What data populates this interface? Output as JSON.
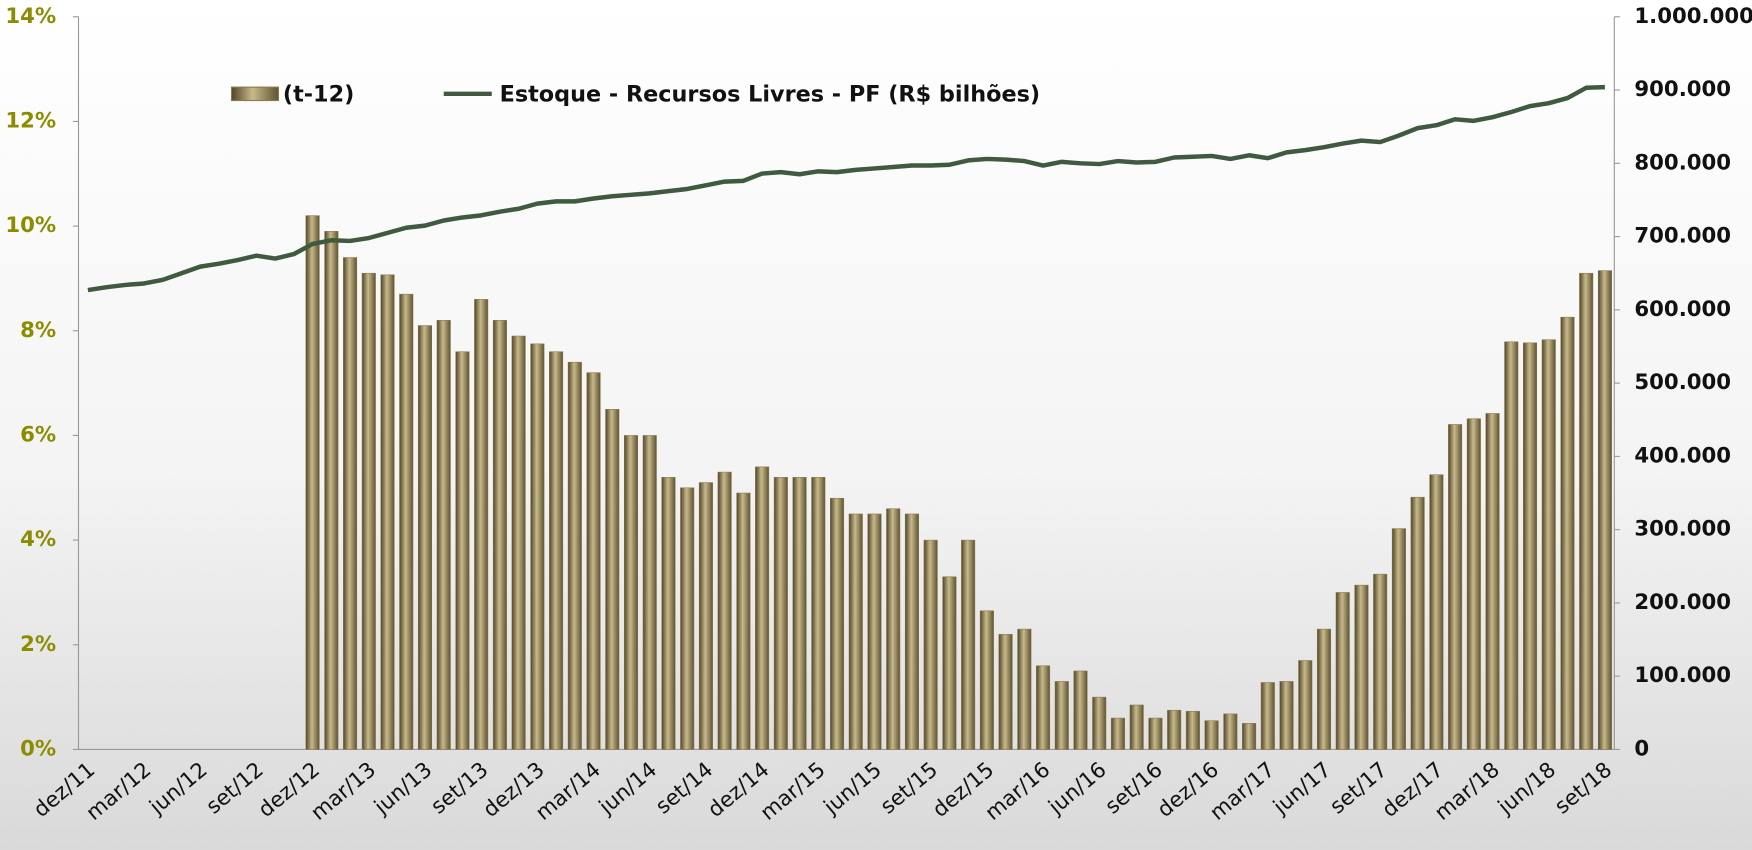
{
  "chart_data": {
    "type": "bar_line",
    "categories": [
      "dez/11",
      null,
      null,
      "mar/12",
      null,
      null,
      "jun/12",
      null,
      null,
      "set/12",
      null,
      null,
      "dez/12",
      null,
      null,
      "mar/13",
      null,
      null,
      "jun/13",
      null,
      null,
      "set/13",
      null,
      null,
      "dez/13",
      null,
      null,
      "mar/14",
      null,
      null,
      "jun/14",
      null,
      null,
      "set/14",
      null,
      null,
      "dez/14",
      null,
      null,
      "mar/15",
      null,
      null,
      "jun/15",
      null,
      null,
      "set/15",
      null,
      null,
      "dez/15",
      null,
      null,
      "mar/16",
      null,
      null,
      "jun/16",
      null,
      null,
      "set/16",
      null,
      null,
      "dez/16",
      null,
      null,
      "mar/17",
      null,
      null,
      "jun/17",
      null,
      null,
      "set/17",
      null,
      null,
      "dez/17",
      null,
      null,
      "mar/18",
      null,
      null,
      "jun/18",
      null,
      null,
      "set/18"
    ],
    "series": [
      {
        "name": "(t-12)",
        "kind": "bar",
        "axis": "y",
        "color": "#8a7a4e",
        "values": [
          null,
          null,
          null,
          null,
          null,
          null,
          null,
          null,
          null,
          null,
          null,
          null,
          10.2,
          9.9,
          9.4,
          9.1,
          9.07,
          8.7,
          8.1,
          8.2,
          7.6,
          8.6,
          8.2,
          7.9,
          7.75,
          7.6,
          7.4,
          7.2,
          6.5,
          6.0,
          6.0,
          5.2,
          5.0,
          5.1,
          5.3,
          4.9,
          5.4,
          5.2,
          5.2,
          5.2,
          4.8,
          4.5,
          4.5,
          4.6,
          4.5,
          4.0,
          3.3,
          4.0,
          2.65,
          2.2,
          2.3,
          1.6,
          1.3,
          1.5,
          1.0,
          0.6,
          0.85,
          0.6,
          0.75,
          0.73,
          0.55,
          0.68,
          0.5,
          1.28,
          1.3,
          1.7,
          2.3,
          3.0,
          3.14,
          3.35,
          4.22,
          4.82,
          5.25,
          6.21,
          6.32,
          6.42,
          7.79,
          7.77,
          7.83,
          8.26,
          9.1,
          9.15
        ]
      },
      {
        "name": "Estoque - Recursos Livres - PF (R$ bilhões)",
        "kind": "line",
        "axis": "y2",
        "color": "#3f5a3f",
        "values": [
          627000,
          631000,
          634000,
          636000,
          641000,
          650000,
          659000,
          663000,
          668000,
          674000,
          670000,
          676000,
          690000,
          695000,
          694000,
          698000,
          705000,
          712000,
          715000,
          722000,
          726000,
          729000,
          734000,
          738000,
          745000,
          748000,
          748000,
          752000,
          755000,
          757000,
          759000,
          762000,
          765000,
          770000,
          775000,
          776000,
          786000,
          788000,
          785000,
          789000,
          788000,
          791000,
          793000,
          795000,
          797000,
          797000,
          798000,
          804000,
          806000,
          805000,
          803000,
          797000,
          802000,
          800000,
          799000,
          803000,
          801000,
          802000,
          808000,
          809000,
          810000,
          806000,
          811000,
          807000,
          815000,
          818000,
          822000,
          827000,
          831000,
          829000,
          838000,
          848000,
          852000,
          860000,
          858000,
          863000,
          870000,
          878000,
          882000,
          889000,
          903000,
          904000
        ]
      }
    ],
    "ylim": [
      0,
      14
    ],
    "yticks": [
      {
        "value": 0,
        "label": "0%"
      },
      {
        "value": 2,
        "label": "2%"
      },
      {
        "value": 4,
        "label": "4%"
      },
      {
        "value": 6,
        "label": "6%"
      },
      {
        "value": 8,
        "label": "8%"
      },
      {
        "value": 10,
        "label": "10%"
      },
      {
        "value": 12,
        "label": "12%"
      },
      {
        "value": 14,
        "label": "14%"
      }
    ],
    "y2lim": [
      0,
      1000000
    ],
    "y2ticks": [
      0,
      {
        "value": 100000,
        "label": "100.000"
      },
      {
        "value": 200000,
        "label": "200.000"
      },
      {
        "value": 300000,
        "label": "300.000"
      },
      {
        "value": 400000,
        "label": "400.000"
      },
      {
        "value": 500000,
        "label": "500.000"
      },
      {
        "value": 600000,
        "label": "600.000"
      },
      {
        "value": 700000,
        "label": "700.000"
      },
      {
        "value": 800000,
        "label": "800.000"
      },
      {
        "value": 900000,
        "label": "900.000"
      },
      {
        "value": 1000000,
        "label": "1.000.000"
      }
    ],
    "legend": "top-left"
  }
}
